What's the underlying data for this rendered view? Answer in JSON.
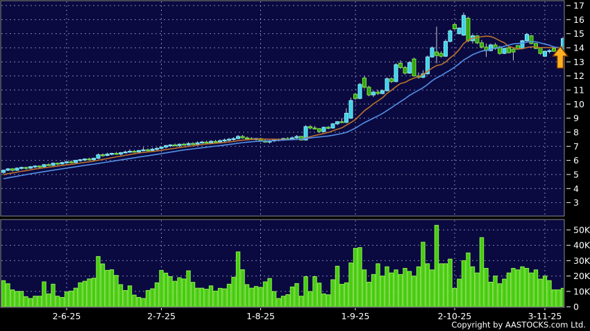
{
  "copyright": "Copyright by AASTOCKS.com Ltd.",
  "colors": {
    "background": "#000000",
    "pane_bg": "#0a0a40",
    "pane_border": "#8a8a8a",
    "grid": "#8484ae",
    "axis_text": "#ffffff",
    "wick": "#c8c8c8",
    "up_fill": "#3cd2e6",
    "up_stroke": "#92eefc",
    "down_fill": "#2da50f",
    "down_stroke": "#86e646",
    "volume_fill": "#46cc12",
    "volume_stroke": "#94ee52",
    "ma_fast": "#c0722c",
    "ma_slow": "#5590e8",
    "arrow_fill": "#ffb020",
    "arrow_stroke": "#6b3000"
  },
  "chart_data": {
    "type": "candlestick-with-volume",
    "price_pane": {
      "ylim": [
        3,
        17
      ],
      "yticks": [
        17,
        16,
        15,
        14,
        13,
        12,
        11,
        10,
        9,
        8,
        7,
        6,
        5,
        4,
        3
      ],
      "grid": true
    },
    "volume_pane": {
      "ylim_thousands": [
        0,
        56
      ],
      "yticks": [
        {
          "value": 50,
          "label": "50K"
        },
        {
          "value": 40,
          "label": "40K"
        },
        {
          "value": 30,
          "label": "30K"
        },
        {
          "value": 20,
          "label": "20K"
        },
        {
          "value": 10,
          "label": "10K"
        },
        {
          "value": 0,
          "label": "0"
        }
      ]
    },
    "x_ticks": [
      {
        "index": 14,
        "label": "2-6-25"
      },
      {
        "index": 35,
        "label": "2-7-25"
      },
      {
        "index": 57,
        "label": "1-8-25"
      },
      {
        "index": 78,
        "label": "1-9-25"
      },
      {
        "index": 100,
        "label": "2-10-25"
      },
      {
        "index": 120,
        "label": "3-11-25"
      }
    ],
    "volume_unit": "K",
    "moving_averages": [
      {
        "name": "ma-fast",
        "period": 10,
        "color_key": "ma_fast"
      },
      {
        "name": "ma-slow",
        "period": 20,
        "color_key": "ma_slow"
      }
    ],
    "ma_seed_closes": [
      4.1,
      4.15,
      4.2,
      4.3,
      4.35,
      4.3,
      4.4,
      4.5,
      4.55,
      4.6,
      4.7,
      4.75,
      4.8,
      4.85,
      4.9,
      4.95,
      5.0,
      5.05,
      5.1,
      5.2
    ],
    "candles_format": [
      "open",
      "high",
      "low",
      "close",
      "volume_thousands"
    ],
    "candles": [
      [
        5.15,
        5.35,
        5.05,
        5.3,
        17
      ],
      [
        5.3,
        5.45,
        5.25,
        5.4,
        15
      ],
      [
        5.4,
        5.45,
        5.2,
        5.3,
        11
      ],
      [
        5.3,
        5.5,
        5.25,
        5.45,
        10
      ],
      [
        5.45,
        5.55,
        5.35,
        5.5,
        10
      ],
      [
        5.5,
        5.55,
        5.35,
        5.45,
        6.6
      ],
      [
        5.45,
        5.6,
        5.4,
        5.55,
        5.4
      ],
      [
        5.55,
        5.65,
        5.45,
        5.6,
        6.9
      ],
      [
        5.6,
        5.65,
        5.45,
        5.55,
        6.9
      ],
      [
        5.55,
        5.75,
        5.5,
        5.7,
        16.2
      ],
      [
        5.7,
        5.8,
        5.6,
        5.65,
        8.4
      ],
      [
        5.65,
        5.85,
        5.6,
        5.8,
        14.7
      ],
      [
        5.8,
        5.85,
        5.65,
        5.75,
        6.9
      ],
      [
        5.75,
        5.9,
        5.7,
        5.85,
        6.1
      ],
      [
        5.85,
        5.95,
        5.75,
        5.9,
        9.6
      ],
      [
        5.9,
        6.0,
        5.8,
        5.85,
        10.2
      ],
      [
        5.85,
        6.05,
        5.8,
        6.0,
        12.1
      ],
      [
        6.0,
        6.1,
        5.9,
        6.05,
        15.6
      ],
      [
        6.05,
        6.15,
        5.95,
        6.1,
        16.6
      ],
      [
        6.1,
        6.2,
        6.0,
        6.05,
        18.1
      ],
      [
        6.05,
        6.2,
        5.95,
        6.15,
        18.6
      ],
      [
        6.15,
        6.5,
        6.1,
        6.4,
        32.7
      ],
      [
        6.4,
        6.5,
        6.25,
        6.35,
        27.9
      ],
      [
        6.35,
        6.55,
        6.3,
        6.45,
        23.7
      ],
      [
        6.45,
        6.55,
        6.35,
        6.5,
        24.1
      ],
      [
        6.5,
        6.6,
        6.4,
        6.45,
        20.4
      ],
      [
        6.45,
        6.6,
        6.35,
        6.55,
        14.4
      ],
      [
        6.55,
        6.7,
        6.5,
        6.6,
        10.6
      ],
      [
        6.6,
        6.8,
        6.55,
        6.65,
        13.6
      ],
      [
        6.65,
        6.75,
        6.55,
        6.6,
        7.6
      ],
      [
        6.6,
        6.75,
        6.5,
        6.7,
        6.1
      ],
      [
        6.7,
        6.95,
        6.65,
        6.75,
        5.4
      ],
      [
        6.75,
        6.85,
        6.6,
        6.7,
        10.6
      ],
      [
        6.7,
        6.9,
        6.65,
        6.8,
        11.7
      ],
      [
        6.8,
        6.95,
        6.7,
        6.85,
        15.6
      ],
      [
        6.85,
        7.0,
        6.8,
        6.95,
        23.7
      ],
      [
        6.95,
        7.1,
        6.85,
        7.05,
        21.9
      ],
      [
        7.05,
        7.15,
        6.95,
        7.1,
        19.6
      ],
      [
        7.1,
        7.2,
        7.0,
        7.05,
        16.6
      ],
      [
        7.05,
        7.2,
        6.95,
        7.15,
        18.9
      ],
      [
        7.15,
        7.25,
        7.05,
        7.1,
        18.1
      ],
      [
        7.1,
        7.3,
        7.05,
        7.2,
        23.4
      ],
      [
        7.2,
        7.3,
        7.1,
        7.15,
        15.9
      ],
      [
        7.15,
        7.35,
        7.1,
        7.25,
        12.1
      ],
      [
        7.25,
        7.4,
        7.2,
        7.3,
        12.1
      ],
      [
        7.3,
        7.4,
        7.2,
        7.25,
        11.4
      ],
      [
        7.25,
        7.45,
        7.2,
        7.35,
        13.6
      ],
      [
        7.35,
        7.45,
        7.25,
        7.3,
        10.2
      ],
      [
        7.3,
        7.5,
        7.25,
        7.4,
        12
      ],
      [
        7.4,
        7.55,
        7.3,
        7.45,
        11.7
      ],
      [
        7.45,
        7.6,
        7.35,
        7.5,
        14.7
      ],
      [
        7.5,
        7.65,
        7.4,
        7.55,
        19.2
      ],
      [
        7.55,
        7.8,
        7.5,
        7.7,
        35.7
      ],
      [
        7.7,
        7.8,
        7.55,
        7.6,
        24.1
      ],
      [
        7.6,
        7.7,
        7.5,
        7.55,
        14.4
      ],
      [
        7.55,
        7.65,
        7.45,
        7.5,
        12.1
      ],
      [
        7.5,
        7.6,
        7.4,
        7.55,
        13.2
      ],
      [
        7.55,
        7.6,
        7.35,
        7.4,
        12.6
      ],
      [
        7.4,
        7.5,
        7.25,
        7.3,
        16.2
      ],
      [
        7.3,
        7.45,
        7.2,
        7.4,
        18.4
      ],
      [
        7.4,
        7.5,
        7.3,
        7.45,
        9.9
      ],
      [
        7.45,
        7.55,
        7.35,
        7.5,
        5.4
      ],
      [
        7.5,
        7.6,
        7.4,
        7.55,
        6.9
      ],
      [
        7.55,
        7.65,
        7.45,
        7.5,
        7.9
      ],
      [
        7.5,
        7.7,
        7.45,
        7.6,
        12.9
      ],
      [
        7.6,
        7.8,
        7.55,
        7.7,
        15.1
      ],
      [
        7.7,
        7.75,
        7.4,
        7.45,
        6.9
      ],
      [
        7.45,
        8.5,
        7.4,
        8.4,
        19.6
      ],
      [
        8.4,
        8.5,
        8.2,
        8.3,
        9.9
      ],
      [
        8.3,
        8.45,
        8.2,
        8.25,
        19.6
      ],
      [
        8.25,
        8.3,
        7.95,
        8.05,
        15.4
      ],
      [
        8.05,
        8.4,
        8.0,
        8.35,
        8.4
      ],
      [
        8.35,
        8.45,
        8.2,
        8.3,
        7.8
      ],
      [
        8.3,
        8.65,
        8.25,
        8.6,
        17.6
      ],
      [
        8.6,
        8.8,
        8.5,
        8.75,
        26.4
      ],
      [
        8.75,
        9.0,
        8.65,
        8.7,
        14.6
      ],
      [
        8.7,
        9.7,
        8.65,
        9.35,
        15.6
      ],
      [
        9.0,
        10.45,
        8.95,
        10.25,
        28.5
      ],
      [
        10.7,
        10.8,
        10.3,
        10.4,
        38
      ],
      [
        10.4,
        11.5,
        10.35,
        11.4,
        38.5
      ],
      [
        11.85,
        12.0,
        11.1,
        11.2,
        24
      ],
      [
        11.2,
        11.3,
        10.55,
        10.65,
        16
      ],
      [
        10.65,
        10.95,
        10.5,
        10.85,
        21
      ],
      [
        10.85,
        11.0,
        10.65,
        10.75,
        28
      ],
      [
        10.75,
        11.05,
        10.7,
        10.95,
        20
      ],
      [
        10.95,
        11.9,
        10.9,
        11.8,
        26
      ],
      [
        11.8,
        11.9,
        11.5,
        11.6,
        22
      ],
      [
        11.6,
        12.9,
        11.55,
        12.8,
        24
      ],
      [
        12.9,
        13.1,
        12.5,
        12.6,
        21
      ],
      [
        12.6,
        12.7,
        12.1,
        12.2,
        25
      ],
      [
        12.2,
        13.05,
        12.15,
        12.95,
        23
      ],
      [
        13.2,
        13.3,
        11.95,
        12.0,
        20
      ],
      [
        12.0,
        12.25,
        11.8,
        11.9,
        26
      ],
      [
        11.9,
        12.4,
        11.85,
        12.15,
        42
      ],
      [
        12.15,
        13.45,
        12.1,
        13.35,
        28
      ],
      [
        13.35,
        14.1,
        13.3,
        14.0,
        24
      ],
      [
        13.7,
        15.5,
        12.9,
        13.45,
        53
      ],
      [
        13.6,
        13.75,
        13.3,
        13.4,
        28
      ],
      [
        13.4,
        14.6,
        13.35,
        14.45,
        28
      ],
      [
        14.45,
        15.3,
        14.4,
        15.2,
        31
      ],
      [
        15.65,
        15.75,
        15.25,
        15.35,
        12
      ],
      [
        15.0,
        15.45,
        14.95,
        15.4,
        18
      ],
      [
        14.9,
        16.5,
        14.85,
        16.3,
        30
      ],
      [
        16.1,
        16.2,
        14.4,
        14.5,
        35
      ],
      [
        14.5,
        14.95,
        14.3,
        14.85,
        26
      ],
      [
        14.85,
        14.9,
        14.25,
        14.35,
        22
      ],
      [
        14.35,
        14.55,
        13.95,
        14.05,
        45
      ],
      [
        14.05,
        14.3,
        13.35,
        13.8,
        25
      ],
      [
        13.8,
        14.3,
        13.75,
        14.2,
        16
      ],
      [
        14.2,
        14.35,
        13.85,
        13.95,
        20
      ],
      [
        14.05,
        14.15,
        13.5,
        13.6,
        15
      ],
      [
        13.6,
        14.0,
        13.55,
        13.95,
        18
      ],
      [
        14.0,
        14.1,
        13.6,
        13.65,
        22
      ],
      [
        13.9,
        13.95,
        13.1,
        13.7,
        25
      ],
      [
        14.15,
        14.2,
        13.85,
        13.9,
        24
      ],
      [
        13.95,
        14.55,
        13.9,
        14.5,
        26
      ],
      [
        14.5,
        15.05,
        14.45,
        14.95,
        25
      ],
      [
        14.85,
        14.9,
        14.25,
        14.3,
        22
      ],
      [
        14.3,
        14.35,
        13.9,
        13.95,
        24
      ],
      [
        14.0,
        14.05,
        13.5,
        13.6,
        18
      ],
      [
        13.4,
        13.8,
        13.35,
        13.75,
        20
      ],
      [
        13.75,
        13.9,
        13.6,
        13.8,
        17
      ],
      [
        13.95,
        14.0,
        13.7,
        13.75,
        11
      ],
      [
        13.75,
        13.8,
        13.35,
        13.65,
        11
      ],
      [
        13.85,
        14.75,
        13.8,
        14.65,
        12
      ]
    ],
    "annotation": {
      "type": "up-arrow",
      "candle_index": 123.4,
      "tip_price": 14.1,
      "base_price": 12.55
    }
  }
}
